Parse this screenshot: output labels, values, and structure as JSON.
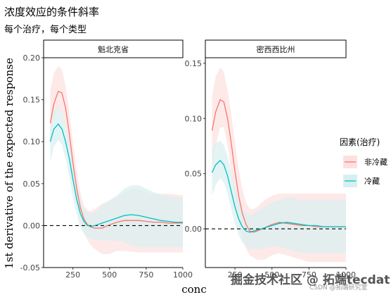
{
  "title": "浓度效应的条件斜率",
  "subtitle": "每个治疗，每个类型",
  "watermark": {
    "main": "掘金技术社区 @ 拓端tecdat",
    "sub": "CSDN @拓端研究室"
  },
  "colors": {
    "non_chilled": "#F8766D",
    "chilled": "#00BFC4",
    "ci_non_chilled": "#FDE0E0",
    "ci_chilled": "#D8EFEF"
  },
  "chart_data": {
    "type": "line",
    "ylabel": "1st derivative of the expected response",
    "xlabel": "conc",
    "legend": {
      "title": "因素(治疗)",
      "position": "right",
      "entries": [
        "非冷藏",
        "冷藏"
      ]
    },
    "grid": false,
    "x_ticks": [
      250,
      500,
      750,
      1000
    ],
    "panels": [
      {
        "strip": "魁北克省",
        "xlim": [
          50,
          1000
        ],
        "ylim": [
          -0.05,
          0.2
        ],
        "y_ticks": [
          -0.05,
          0.0,
          0.05,
          0.1,
          0.15,
          0.2
        ],
        "y_tick_labels": [
          "-0.05",
          "0.00",
          "0.05",
          "0.10",
          "0.15",
          "0.20"
        ],
        "series": [
          {
            "name": "非冷藏",
            "x": [
              95,
              120,
              150,
              175,
              200,
              225,
              250,
              275,
              300,
              325,
              350,
              375,
              400,
              450,
              500,
              550,
              600,
              650,
              700,
              750,
              800,
              850,
              900,
              950,
              1000
            ],
            "y": [
              0.122,
              0.145,
              0.16,
              0.158,
              0.14,
              0.11,
              0.075,
              0.045,
              0.022,
              0.008,
              0.001,
              -0.002,
              -0.003,
              -0.003,
              0.001,
              0.004,
              0.006,
              0.006,
              0.006,
              0.005,
              0.004,
              0.004,
              0.003,
              0.003,
              0.003
            ],
            "lo": [
              0.1,
              0.128,
              0.14,
              0.136,
              0.118,
              0.088,
              0.055,
              0.026,
              0.006,
              -0.008,
              -0.018,
              -0.024,
              -0.028,
              -0.034,
              -0.034,
              -0.03,
              -0.03,
              -0.031,
              -0.032,
              -0.032,
              -0.032,
              -0.032,
              -0.032,
              -0.032,
              -0.032
            ],
            "hi": [
              0.16,
              0.182,
              0.19,
              0.186,
              0.166,
              0.136,
              0.1,
              0.066,
              0.04,
              0.024,
              0.018,
              0.017,
              0.02,
              0.026,
              0.03,
              0.034,
              0.04,
              0.043,
              0.043,
              0.04,
              0.038,
              0.038,
              0.038,
              0.037,
              0.036
            ]
          },
          {
            "name": "冷藏",
            "x": [
              95,
              120,
              150,
              175,
              200,
              225,
              250,
              275,
              300,
              325,
              350,
              375,
              400,
              450,
              500,
              550,
              600,
              650,
              700,
              750,
              800,
              850,
              900,
              950,
              1000
            ],
            "y": [
              0.1,
              0.115,
              0.121,
              0.115,
              0.1,
              0.08,
              0.055,
              0.032,
              0.015,
              0.005,
              0.0,
              -0.001,
              0.0,
              0.003,
              0.006,
              0.009,
              0.012,
              0.013,
              0.012,
              0.01,
              0.008,
              0.006,
              0.005,
              0.004,
              0.004
            ],
            "lo": [
              0.075,
              0.094,
              0.102,
              0.096,
              0.08,
              0.058,
              0.034,
              0.014,
              -0.002,
              -0.01,
              -0.014,
              -0.016,
              -0.017,
              -0.018,
              -0.018,
              -0.018,
              -0.02,
              -0.024,
              -0.026,
              -0.026,
              -0.026,
              -0.026,
              -0.026,
              -0.026,
              -0.026
            ],
            "hi": [
              0.118,
              0.136,
              0.142,
              0.136,
              0.12,
              0.1,
              0.076,
              0.05,
              0.032,
              0.02,
              0.015,
              0.014,
              0.016,
              0.024,
              0.03,
              0.036,
              0.044,
              0.048,
              0.048,
              0.044,
              0.04,
              0.037,
              0.035,
              0.034,
              0.033
            ]
          }
        ]
      },
      {
        "strip": "密西西比州",
        "xlim": [
          50,
          1000
        ],
        "ylim": [
          -0.035,
          0.155
        ],
        "y_ticks": [
          0.0,
          0.05,
          0.1,
          0.15
        ],
        "y_tick_labels": [
          "0.00",
          "0.05",
          "0.10",
          "0.15"
        ],
        "series": [
          {
            "name": "非冷藏",
            "x": [
              95,
              120,
              150,
              175,
              200,
              225,
              250,
              275,
              300,
              325,
              350,
              375,
              400,
              450,
              500,
              550,
              600,
              650,
              700,
              750,
              800,
              850,
              900,
              950,
              1000
            ],
            "y": [
              0.089,
              0.106,
              0.117,
              0.115,
              0.1,
              0.078,
              0.052,
              0.03,
              0.014,
              0.004,
              -0.002,
              -0.003,
              -0.002,
              0.001,
              0.004,
              0.006,
              0.005,
              0.004,
              0.003,
              0.003,
              0.002,
              0.002,
              0.002,
              0.002,
              0.002
            ],
            "lo": [
              0.055,
              0.076,
              0.092,
              0.092,
              0.076,
              0.052,
              0.026,
              0.006,
              -0.01,
              -0.018,
              -0.024,
              -0.026,
              -0.028,
              -0.028,
              -0.024,
              -0.022,
              -0.024,
              -0.026,
              -0.028,
              -0.03,
              -0.03,
              -0.03,
              -0.03,
              -0.03,
              -0.03
            ],
            "hi": [
              0.12,
              0.138,
              0.146,
              0.142,
              0.126,
              0.104,
              0.078,
              0.054,
              0.036,
              0.024,
              0.018,
              0.018,
              0.02,
              0.026,
              0.03,
              0.032,
              0.032,
              0.032,
              0.032,
              0.032,
              0.032,
              0.032,
              0.032,
              0.032,
              0.032
            ]
          },
          {
            "name": "冷藏",
            "x": [
              95,
              120,
              150,
              175,
              200,
              225,
              250,
              275,
              300,
              325,
              350,
              375,
              400,
              450,
              500,
              550,
              600,
              650,
              700,
              750,
              800,
              850,
              900,
              950,
              1000
            ],
            "y": [
              0.051,
              0.058,
              0.062,
              0.058,
              0.048,
              0.034,
              0.02,
              0.009,
              0.002,
              -0.002,
              -0.003,
              -0.002,
              -0.001,
              0.001,
              0.003,
              0.005,
              0.006,
              0.005,
              0.004,
              0.003,
              0.003,
              0.002,
              0.002,
              0.002,
              0.002
            ],
            "lo": [
              0.03,
              0.04,
              0.046,
              0.042,
              0.032,
              0.018,
              0.004,
              -0.006,
              -0.012,
              -0.016,
              -0.018,
              -0.018,
              -0.018,
              -0.018,
              -0.016,
              -0.016,
              -0.018,
              -0.02,
              -0.022,
              -0.022,
              -0.022,
              -0.022,
              -0.022,
              -0.022,
              -0.022
            ],
            "hi": [
              0.072,
              0.078,
              0.08,
              0.076,
              0.066,
              0.052,
              0.038,
              0.026,
              0.018,
              0.014,
              0.012,
              0.014,
              0.016,
              0.02,
              0.024,
              0.026,
              0.028,
              0.028,
              0.026,
              0.026,
              0.026,
              0.026,
              0.026,
              0.026,
              0.026
            ]
          }
        ]
      }
    ]
  }
}
